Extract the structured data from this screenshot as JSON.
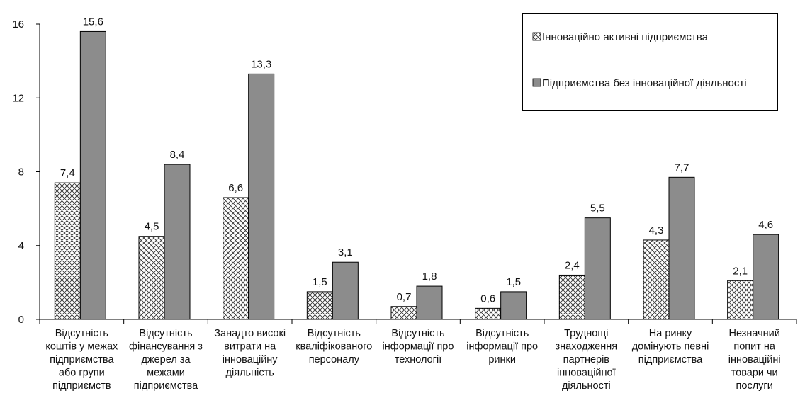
{
  "chart_data": {
    "type": "bar",
    "title": "",
    "xlabel": "",
    "ylabel": "",
    "ylim": [
      0,
      16
    ],
    "yticks": [
      0,
      4,
      8,
      12,
      16
    ],
    "grid": false,
    "legend_position": "top-right",
    "categories": [
      [
        "Відсутність",
        "коштів у межах",
        "підприємства",
        "або групи",
        "підприємств"
      ],
      [
        "Відсутність",
        "фінансування з",
        "джерел за",
        "межами",
        "підприємства"
      ],
      [
        "Занадто високі",
        "витрати на",
        "інноваційну",
        "діяльність"
      ],
      [
        "Відсутність",
        "кваліфікованого",
        "персоналу"
      ],
      [
        "Відсутність",
        "інформації про",
        "технології"
      ],
      [
        "Відсутність",
        "інформації про",
        "ринки"
      ],
      [
        "Труднощі",
        "знаходження",
        "партнерів",
        "інноваційної",
        "діяльності"
      ],
      [
        "На ринку",
        "домінують певні",
        "підприємства"
      ],
      [
        "Незначний",
        "попит на",
        "інноваційні",
        "товари чи",
        "послуги"
      ]
    ],
    "series": [
      {
        "name": "Інноваційно активні підприємства",
        "values": [
          7.4,
          4.5,
          6.6,
          1.5,
          0.7,
          0.6,
          2.4,
          4.3,
          2.1
        ],
        "value_labels": [
          "7,4",
          "4,5",
          "6,6",
          "1,5",
          "0,7",
          "0,6",
          "2,4",
          "4,3",
          "2,1"
        ],
        "fill": "crosshatch",
        "color": "#333333"
      },
      {
        "name": "Підприємства без інноваційної діяльності",
        "values": [
          15.6,
          8.4,
          13.3,
          3.1,
          1.8,
          1.5,
          5.5,
          7.7,
          4.6
        ],
        "value_labels": [
          "15,6",
          "8,4",
          "13,3",
          "3,1",
          "1,8",
          "1,5",
          "5,5",
          "7,7",
          "4,6"
        ],
        "fill": "solid",
        "color": "#8c8c8c"
      }
    ]
  }
}
